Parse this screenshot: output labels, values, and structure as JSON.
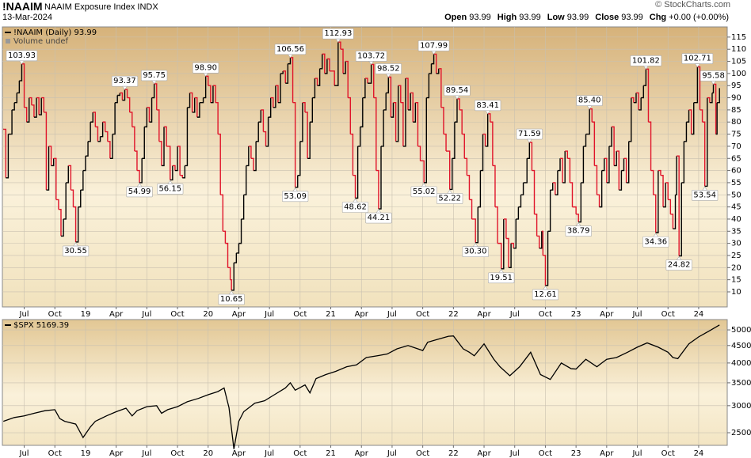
{
  "header": {
    "symbol": "!NAAIM",
    "name": "NAAIM Exposure Index",
    "exchange": "INDX",
    "date": "13-Mar-2024",
    "credit": "© StockCharts.com",
    "quote": [
      {
        "label": "Open",
        "value": "93.99"
      },
      {
        "label": "High",
        "value": "93.99"
      },
      {
        "label": "Low",
        "value": "93.99"
      },
      {
        "label": "Close",
        "value": "93.99"
      },
      {
        "label": "Chg",
        "value": "+0.00 (+0.00%)"
      }
    ]
  },
  "chart_data": [
    {
      "type": "line",
      "step": true,
      "grid": true,
      "legend_note": "Volume undef",
      "xlim": [
        2018.322,
        2024.233
      ],
      "xticks": [
        {
          "value": 2018.5,
          "label": "Jul"
        },
        {
          "value": 2018.75,
          "label": "Oct"
        },
        {
          "value": 2019,
          "label": "19"
        },
        {
          "value": 2019.25,
          "label": "Apr"
        },
        {
          "value": 2019.5,
          "label": "Jul"
        },
        {
          "value": 2019.75,
          "label": "Oct"
        },
        {
          "value": 2020,
          "label": "20"
        },
        {
          "value": 2020.25,
          "label": "Apr"
        },
        {
          "value": 2020.5,
          "label": "Jul"
        },
        {
          "value": 2020.75,
          "label": "Oct"
        },
        {
          "value": 2021,
          "label": "21"
        },
        {
          "value": 2021.25,
          "label": "Apr"
        },
        {
          "value": 2021.5,
          "label": "Jul"
        },
        {
          "value": 2021.75,
          "label": "Oct"
        },
        {
          "value": 2022,
          "label": "22"
        },
        {
          "value": 2022.25,
          "label": "Apr"
        },
        {
          "value": 2022.5,
          "label": "Jul"
        },
        {
          "value": 2022.75,
          "label": "Oct"
        },
        {
          "value": 2023,
          "label": "23"
        },
        {
          "value": 2023.25,
          "label": "Apr"
        },
        {
          "value": 2023.5,
          "label": "Jul"
        },
        {
          "value": 2023.75,
          "label": "Oct"
        },
        {
          "value": 2024,
          "label": "24"
        }
      ],
      "ylim": [
        3.8,
        119.2
      ],
      "yticks": [
        10,
        15,
        20,
        25,
        30,
        35,
        40,
        45,
        50,
        55,
        60,
        65,
        70,
        75,
        80,
        85,
        90,
        95,
        100,
        105,
        110,
        115
      ],
      "x": [
        2018.33,
        2018.35,
        2018.37,
        2018.4,
        2018.42,
        2018.44,
        2018.46,
        2018.48,
        2018.5,
        2018.52,
        2018.54,
        2018.56,
        2018.58,
        2018.6,
        2018.62,
        2018.64,
        2018.66,
        2018.68,
        2018.7,
        2018.72,
        2018.74,
        2018.76,
        2018.78,
        2018.8,
        2018.82,
        2018.84,
        2018.86,
        2018.88,
        2018.9,
        2018.92,
        2018.94,
        2018.96,
        2018.98,
        2019.0,
        2019.02,
        2019.04,
        2019.06,
        2019.08,
        2019.1,
        2019.12,
        2019.14,
        2019.16,
        2019.18,
        2019.2,
        2019.22,
        2019.24,
        2019.26,
        2019.28,
        2019.3,
        2019.32,
        2019.34,
        2019.36,
        2019.38,
        2019.4,
        2019.42,
        2019.44,
        2019.46,
        2019.48,
        2019.5,
        2019.52,
        2019.54,
        2019.56,
        2019.58,
        2019.6,
        2019.62,
        2019.64,
        2019.66,
        2019.69,
        2019.71,
        2019.73,
        2019.75,
        2019.77,
        2019.79,
        2019.81,
        2019.83,
        2019.85,
        2019.87,
        2019.89,
        2019.91,
        2019.93,
        2019.96,
        2019.98,
        2020.0,
        2020.02,
        2020.04,
        2020.06,
        2020.08,
        2020.1,
        2020.12,
        2020.14,
        2020.16,
        2020.18,
        2020.19,
        2020.21,
        2020.23,
        2020.25,
        2020.27,
        2020.29,
        2020.31,
        2020.33,
        2020.35,
        2020.37,
        2020.39,
        2020.41,
        2020.43,
        2020.45,
        2020.47,
        2020.49,
        2020.51,
        2020.53,
        2020.55,
        2020.57,
        2020.59,
        2020.61,
        2020.63,
        2020.65,
        2020.67,
        2020.69,
        2020.71,
        2020.73,
        2020.75,
        2020.77,
        2020.79,
        2020.81,
        2020.83,
        2020.85,
        2020.87,
        2020.89,
        2020.91,
        2020.93,
        2020.95,
        2020.97,
        2020.99,
        2021.03,
        2021.06,
        2021.08,
        2021.1,
        2021.12,
        2021.14,
        2021.16,
        2021.18,
        2021.2,
        2021.22,
        2021.24,
        2021.26,
        2021.28,
        2021.3,
        2021.33,
        2021.35,
        2021.37,
        2021.39,
        2021.41,
        2021.43,
        2021.45,
        2021.47,
        2021.49,
        2021.51,
        2021.53,
        2021.55,
        2021.57,
        2021.59,
        2021.61,
        2021.63,
        2021.65,
        2021.67,
        2021.69,
        2021.71,
        2021.73,
        2021.76,
        2021.78,
        2021.8,
        2021.82,
        2021.84,
        2021.86,
        2021.88,
        2021.9,
        2021.92,
        2021.94,
        2021.97,
        2021.99,
        2022.01,
        2022.03,
        2022.05,
        2022.07,
        2022.09,
        2022.11,
        2022.13,
        2022.15,
        2022.18,
        2022.2,
        2022.22,
        2022.24,
        2022.26,
        2022.28,
        2022.3,
        2022.32,
        2022.34,
        2022.36,
        2022.39,
        2022.41,
        2022.43,
        2022.45,
        2022.47,
        2022.49,
        2022.51,
        2022.53,
        2022.55,
        2022.57,
        2022.6,
        2022.62,
        2022.64,
        2022.66,
        2022.68,
        2022.7,
        2022.72,
        2022.73,
        2022.75,
        2022.77,
        2022.79,
        2022.81,
        2022.83,
        2022.85,
        2022.87,
        2022.89,
        2022.91,
        2022.93,
        2022.95,
        2022.97,
        2023.0,
        2023.02,
        2023.04,
        2023.06,
        2023.08,
        2023.11,
        2023.13,
        2023.15,
        2023.17,
        2023.19,
        2023.21,
        2023.23,
        2023.25,
        2023.27,
        2023.29,
        2023.31,
        2023.33,
        2023.35,
        2023.37,
        2023.39,
        2023.41,
        2023.43,
        2023.45,
        2023.47,
        2023.49,
        2023.51,
        2023.53,
        2023.55,
        2023.57,
        2023.59,
        2023.61,
        2023.63,
        2023.65,
        2023.67,
        2023.69,
        2023.71,
        2023.73,
        2023.75,
        2023.77,
        2023.79,
        2023.81,
        2023.82,
        2023.84,
        2023.86,
        2023.88,
        2023.9,
        2023.92,
        2023.94,
        2023.96,
        2023.99,
        2024.01,
        2024.03,
        2024.05,
        2024.07,
        2024.09,
        2024.11,
        2024.12,
        2024.14,
        2024.15,
        2024.17
      ],
      "series": [
        {
          "name": "!NAAIM (Daily)",
          "color": "#000000",
          "down_color": "#e0142a",
          "values": [
            77,
            57,
            75,
            85,
            88,
            92,
            97,
            103.93,
            86,
            80,
            90,
            87,
            82,
            90,
            83,
            90,
            84,
            52,
            70,
            62,
            65,
            48,
            44,
            33,
            40,
            55,
            62,
            52,
            45,
            30.55,
            45,
            52,
            60,
            66,
            72,
            80,
            84,
            78,
            72,
            74,
            80,
            76,
            72,
            65,
            75,
            88,
            91,
            92,
            89,
            93.37,
            90,
            84,
            78,
            68,
            60,
            54.99,
            65,
            78,
            86,
            80,
            90,
            95.75,
            85,
            72,
            62,
            78,
            70,
            56.15,
            62,
            60,
            70,
            58,
            57,
            62,
            86,
            92,
            84,
            90,
            82,
            88,
            90,
            98.9,
            95,
            88,
            95,
            88,
            75,
            50,
            35,
            30,
            20,
            15,
            10.65,
            22,
            26,
            30,
            40,
            50,
            62,
            70,
            65,
            60,
            72,
            80,
            85,
            76,
            70,
            82,
            90,
            86,
            95,
            88,
            100,
            101,
            96,
            104,
            106.56,
            88,
            53.09,
            58,
            72,
            88,
            84,
            65,
            80,
            90,
            98,
            95,
            102,
            108,
            100,
            106,
            101,
            95,
            112.93,
            110,
            100,
            105,
            90,
            75,
            58,
            48.62,
            70,
            78,
            90,
            98,
            96,
            103.72,
            90,
            60,
            44.21,
            70,
            85,
            92,
            98.52,
            82,
            88,
            72,
            95,
            88,
            70,
            98,
            85,
            92,
            80,
            88,
            70,
            64,
            55.02,
            90,
            100,
            104,
            107.99,
            100,
            102,
            86,
            75,
            68,
            52.22,
            65,
            80,
            89.54,
            85,
            75,
            65,
            58,
            48,
            40,
            30.3,
            45,
            60,
            75,
            70,
            83.41,
            80,
            62,
            45,
            30,
            19.51,
            40,
            32,
            20,
            30,
            28,
            40,
            45,
            50,
            55,
            65,
            71.59,
            60,
            42,
            33,
            28,
            35,
            25,
            12.61,
            35,
            52,
            55,
            50,
            60,
            65,
            55,
            68,
            65,
            55,
            45,
            42,
            38.79,
            55,
            70,
            75,
            85.4,
            80,
            62,
            50,
            45,
            60,
            65,
            55,
            70,
            78,
            62,
            68,
            52,
            60,
            65,
            55,
            72,
            90,
            88,
            92,
            85,
            90,
            95,
            101.82,
            80,
            60,
            50,
            34.36,
            60,
            58,
            45,
            55,
            48,
            42,
            36,
            50,
            66,
            24.82,
            55,
            72,
            80,
            85,
            75,
            88,
            102.71,
            85,
            80,
            53.54,
            90,
            88,
            92,
            95.58,
            75,
            88,
            93.99
          ]
        }
      ],
      "annotations": [
        {
          "x": 2018.48,
          "label": "103.93"
        },
        {
          "x": 2018.92,
          "label": "30.55"
        },
        {
          "x": 2019.32,
          "label": "93.37"
        },
        {
          "x": 2019.44,
          "label": "54.99"
        },
        {
          "x": 2019.56,
          "label": "95.75"
        },
        {
          "x": 2019.69,
          "label": "56.15"
        },
        {
          "x": 2019.98,
          "label": "98.90"
        },
        {
          "x": 2020.19,
          "label": "10.65"
        },
        {
          "x": 2020.67,
          "label": "106.56"
        },
        {
          "x": 2020.71,
          "label": "53.09"
        },
        {
          "x": 2021.06,
          "label": "112.93"
        },
        {
          "x": 2021.2,
          "label": "48.62"
        },
        {
          "x": 2021.33,
          "label": "103.72"
        },
        {
          "x": 2021.39,
          "label": "44.21"
        },
        {
          "x": 2021.47,
          "label": "98.52"
        },
        {
          "x": 2021.76,
          "label": "55.02"
        },
        {
          "x": 2021.84,
          "label": "107.99"
        },
        {
          "x": 2021.97,
          "label": "52.22"
        },
        {
          "x": 2022.03,
          "label": "89.54"
        },
        {
          "x": 2022.18,
          "label": "30.30"
        },
        {
          "x": 2022.28,
          "label": "83.41"
        },
        {
          "x": 2022.39,
          "label": "19.51"
        },
        {
          "x": 2022.62,
          "label": "71.59"
        },
        {
          "x": 2022.75,
          "label": "12.61"
        },
        {
          "x": 2023.02,
          "label": "38.79"
        },
        {
          "x": 2023.11,
          "label": "85.40"
        },
        {
          "x": 2023.57,
          "label": "101.82"
        },
        {
          "x": 2023.65,
          "label": "34.36"
        },
        {
          "x": 2023.84,
          "label": "24.82"
        },
        {
          "x": 2023.99,
          "label": "102.71"
        },
        {
          "x": 2024.05,
          "label": "53.54"
        },
        {
          "x": 2024.12,
          "label": "95.58"
        }
      ]
    },
    {
      "type": "line",
      "log_scale": true,
      "grid": true,
      "ylim": [
        2296,
        5360
      ],
      "yticks": [
        2500,
        3000,
        3500,
        4000,
        4500,
        5000
      ],
      "x": [
        2018.33,
        2018.42,
        2018.5,
        2018.58,
        2018.67,
        2018.75,
        2018.79,
        2018.83,
        2018.92,
        2018.98,
        2019.04,
        2019.08,
        2019.17,
        2019.25,
        2019.33,
        2019.38,
        2019.42,
        2019.5,
        2019.58,
        2019.62,
        2019.67,
        2019.75,
        2019.83,
        2019.92,
        2020.0,
        2020.08,
        2020.13,
        2020.17,
        2020.21,
        2020.25,
        2020.29,
        2020.38,
        2020.46,
        2020.54,
        2020.63,
        2020.67,
        2020.71,
        2020.79,
        2020.83,
        2020.88,
        2020.96,
        2021.04,
        2021.13,
        2021.21,
        2021.29,
        2021.38,
        2021.46,
        2021.54,
        2021.63,
        2021.71,
        2021.75,
        2021.79,
        2021.88,
        2021.96,
        2022.0,
        2022.08,
        2022.13,
        2022.17,
        2022.25,
        2022.33,
        2022.38,
        2022.46,
        2022.54,
        2022.63,
        2022.71,
        2022.79,
        2022.88,
        2022.96,
        2023.0,
        2023.08,
        2023.17,
        2023.21,
        2023.25,
        2023.33,
        2023.42,
        2023.5,
        2023.58,
        2023.67,
        2023.75,
        2023.79,
        2023.83,
        2023.92,
        2024.0,
        2024.08,
        2024.17
      ],
      "series": [
        {
          "name": "$SPX",
          "color": "#000000",
          "values": [
            2700,
            2770,
            2800,
            2850,
            2900,
            2920,
            2750,
            2700,
            2650,
            2420,
            2600,
            2700,
            2800,
            2880,
            2950,
            2800,
            2900,
            2980,
            3000,
            2850,
            2920,
            2980,
            3080,
            3150,
            3230,
            3300,
            3380,
            2960,
            2240,
            2700,
            2880,
            3050,
            3100,
            3230,
            3380,
            3500,
            3330,
            3450,
            3270,
            3600,
            3700,
            3780,
            3900,
            3950,
            4150,
            4200,
            4250,
            4400,
            4500,
            4400,
            4350,
            4600,
            4700,
            4790,
            4800,
            4400,
            4300,
            4200,
            4550,
            4100,
            3900,
            3670,
            3900,
            4300,
            3700,
            3580,
            4000,
            3850,
            3840,
            4100,
            3900,
            4000,
            4100,
            4150,
            4300,
            4450,
            4580,
            4450,
            4300,
            4150,
            4120,
            4550,
            4770,
            4950,
            5169.39
          ]
        }
      ]
    }
  ]
}
